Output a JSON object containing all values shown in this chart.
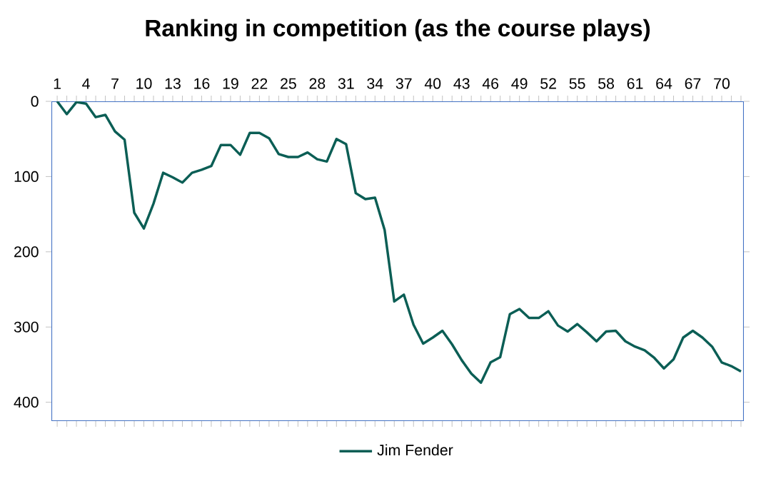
{
  "chart_data": {
    "type": "line",
    "title": "Ranking in competition (as the course plays)",
    "categories": [
      "1",
      null,
      null,
      "4",
      null,
      null,
      "7",
      null,
      null,
      "10",
      null,
      null,
      "13",
      null,
      null,
      "16",
      null,
      null,
      "19",
      null,
      null,
      "22",
      null,
      null,
      "25",
      null,
      null,
      "28",
      null,
      null,
      "31",
      null,
      null,
      "34",
      null,
      null,
      "37",
      null,
      null,
      "40",
      null,
      null,
      "43",
      null,
      null,
      "46",
      null,
      null,
      "49",
      null,
      null,
      "52",
      null,
      null,
      "55",
      null,
      null,
      "58",
      null,
      null,
      "61",
      null,
      null,
      "64",
      null,
      null,
      "67",
      null,
      null,
      "70",
      null,
      null
    ],
    "series": [
      {
        "name": "Jim Fender",
        "color": "#0b5e55",
        "values": [
          0,
          17,
          1,
          3,
          21,
          18,
          40,
          51,
          148,
          169,
          136,
          95,
          101,
          108,
          95,
          91,
          86,
          58,
          58,
          71,
          42,
          42,
          49,
          70,
          74,
          74,
          68,
          77,
          80,
          50,
          57,
          122,
          130,
          128,
          171,
          266,
          257,
          297,
          322,
          314,
          305,
          323,
          344,
          362,
          374,
          347,
          340,
          283,
          276,
          288,
          288,
          279,
          298,
          306,
          296,
          307,
          319,
          306,
          305,
          319,
          326,
          331,
          341,
          355,
          343,
          314,
          305,
          314,
          326,
          347,
          352,
          359
        ]
      }
    ],
    "ylim": [
      425,
      0
    ],
    "yticks": [
      0,
      100,
      200,
      300,
      400
    ],
    "legend": "bottom",
    "grid": false,
    "marker": "none",
    "line_style": "solid"
  }
}
